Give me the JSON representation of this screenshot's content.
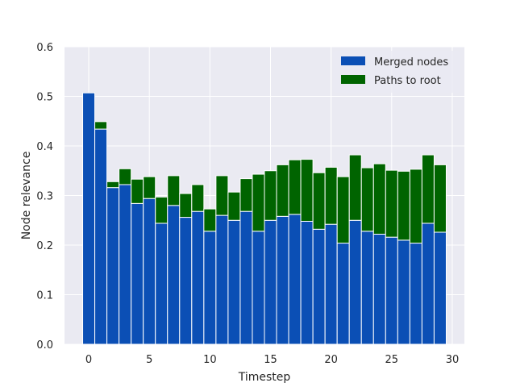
{
  "chart_data": {
    "type": "bar",
    "stacked": true,
    "xlabel": "Timestep",
    "ylabel": "Node relevance",
    "xlim": [
      -2,
      31
    ],
    "ylim": [
      0,
      0.6
    ],
    "xticks": [
      0,
      5,
      10,
      15,
      20,
      25,
      30
    ],
    "yticks": [
      0.0,
      0.1,
      0.2,
      0.3,
      0.4,
      0.5,
      0.6
    ],
    "ytick_labels": [
      "0.0",
      "0.1",
      "0.2",
      "0.3",
      "0.4",
      "0.5",
      "0.6"
    ],
    "grid": true,
    "legend_position": "top-right",
    "x": [
      0,
      1,
      2,
      3,
      4,
      5,
      6,
      7,
      8,
      9,
      10,
      11,
      12,
      13,
      14,
      15,
      16,
      17,
      18,
      19,
      20,
      21,
      22,
      23,
      24,
      25,
      26,
      27,
      28,
      29
    ],
    "series": [
      {
        "name": "Merged nodes",
        "color": "#0b4fb5",
        "values": [
          0.507,
          0.434,
          0.316,
          0.322,
          0.284,
          0.294,
          0.244,
          0.28,
          0.256,
          0.268,
          0.228,
          0.26,
          0.25,
          0.268,
          0.228,
          0.25,
          0.258,
          0.262,
          0.248,
          0.232,
          0.242,
          0.204,
          0.25,
          0.228,
          0.222,
          0.216,
          0.21,
          0.204,
          0.244,
          0.226
        ]
      },
      {
        "name": "Paths to root",
        "color": "#006400",
        "totals": [
          0.507,
          0.449,
          0.328,
          0.354,
          0.333,
          0.338,
          0.297,
          0.34,
          0.304,
          0.322,
          0.273,
          0.34,
          0.307,
          0.334,
          0.343,
          0.35,
          0.362,
          0.372,
          0.373,
          0.346,
          0.357,
          0.338,
          0.382,
          0.356,
          0.364,
          0.351,
          0.349,
          0.353,
          0.382,
          0.362
        ]
      }
    ]
  }
}
